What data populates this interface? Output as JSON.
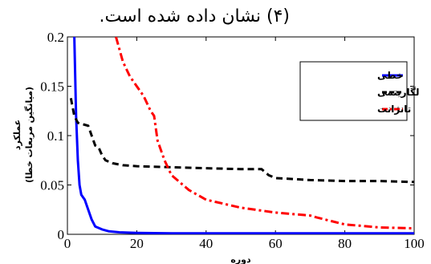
{
  "caption": "(۴) نشان داده شده است.",
  "chart_data": {
    "type": "line",
    "xlabel": "دوره",
    "ylabel_line1": "عملکرد",
    "ylabel_line2": "(میانگین مربعات خطا)",
    "xlim": [
      0,
      100
    ],
    "ylim": [
      0,
      0.2
    ],
    "x_ticks": [
      0,
      20,
      40,
      60,
      80,
      100
    ],
    "x_tick_labels": [
      "0",
      "20",
      "40",
      "60",
      "80",
      "100"
    ],
    "y_ticks": [
      0,
      0.05,
      0.1,
      0.15,
      0.2
    ],
    "y_tick_labels": [
      "0",
      "0.05",
      "0.1",
      "0.15",
      "0.2"
    ],
    "grid": false,
    "legend_position": "top-right",
    "series": [
      {
        "name": "خطی",
        "color": "#0000ff",
        "style": "solid",
        "x": [
          2,
          2.5,
          3,
          3.5,
          4,
          5,
          6,
          7,
          8,
          10,
          12,
          15,
          20,
          30,
          50,
          100
        ],
        "y": [
          0.2,
          0.12,
          0.075,
          0.05,
          0.04,
          0.035,
          0.025,
          0.015,
          0.008,
          0.005,
          0.003,
          0.002,
          0.0015,
          0.001,
          0.001,
          0.001
        ]
      },
      {
        "name": "لگاریتمی",
        "color": "#000000",
        "style": "dashed",
        "x": [
          1,
          2,
          3,
          5,
          6,
          7,
          8,
          9,
          10,
          11,
          13,
          16,
          20,
          30,
          40,
          50,
          56,
          58,
          60,
          65,
          70,
          80,
          90,
          100
        ],
        "y": [
          0.138,
          0.12,
          0.113,
          0.111,
          0.11,
          0.1,
          0.09,
          0.088,
          0.08,
          0.075,
          0.072,
          0.07,
          0.069,
          0.068,
          0.067,
          0.066,
          0.066,
          0.06,
          0.057,
          0.056,
          0.055,
          0.054,
          0.054,
          0.053
        ]
      },
      {
        "name": "تانژانت",
        "color": "#ff0000",
        "style": "dashdot",
        "x": [
          14,
          16,
          18,
          20,
          22,
          24,
          25,
          26,
          28,
          30,
          35,
          40,
          50,
          60,
          70,
          72,
          80,
          90,
          100
        ],
        "y": [
          0.2,
          0.175,
          0.16,
          0.15,
          0.14,
          0.125,
          0.12,
          0.095,
          0.075,
          0.06,
          0.045,
          0.035,
          0.027,
          0.022,
          0.019,
          0.017,
          0.01,
          0.007,
          0.006
        ]
      }
    ]
  }
}
